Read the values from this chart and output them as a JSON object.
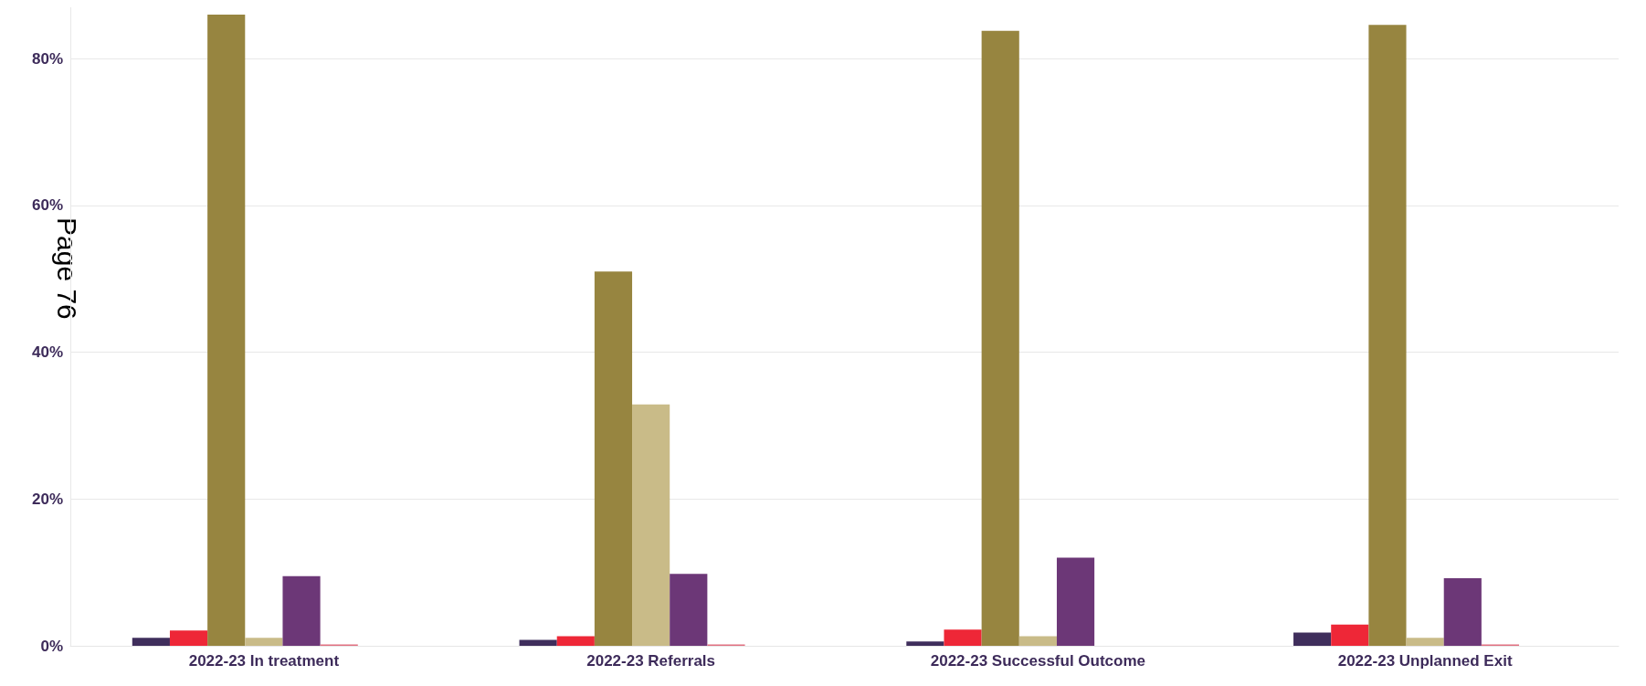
{
  "chart_data": {
    "type": "bar",
    "categories": [
      "2022-23 In treatment",
      "2022-23 Referrals",
      "2022-23 Successful Outcome",
      "2022-23 Unplanned Exit"
    ],
    "series": [
      {
        "color": "#3f2e5c",
        "values": [
          1.1,
          0.8,
          0.6,
          1.8
        ]
      },
      {
        "color": "#ee2737",
        "values": [
          2.1,
          1.3,
          2.2,
          2.9
        ]
      },
      {
        "color": "#978540",
        "values": [
          86,
          51,
          83.8,
          84.6
        ]
      },
      {
        "color": "#c9bb88",
        "values": [
          1.1,
          32.9,
          1.3,
          1.1
        ]
      },
      {
        "color": "#6c3777",
        "values": [
          9.5,
          9.8,
          12,
          9.2
        ]
      },
      {
        "color": "#e07080",
        "values": [
          0.2,
          0.2,
          null,
          0.2
        ]
      },
      {
        "color": "#dddddd",
        "values": [
          null,
          null,
          null,
          null
        ]
      }
    ],
    "ylim": [
      0,
      87
    ],
    "yticks": [
      {
        "value": 0,
        "label": "0%"
      },
      {
        "value": 20,
        "label": "20%"
      },
      {
        "value": 40,
        "label": "40%"
      },
      {
        "value": 60,
        "label": "60%"
      },
      {
        "value": 80,
        "label": "80%"
      }
    ],
    "grid": "y",
    "annotations": [
      "Page 76"
    ]
  }
}
